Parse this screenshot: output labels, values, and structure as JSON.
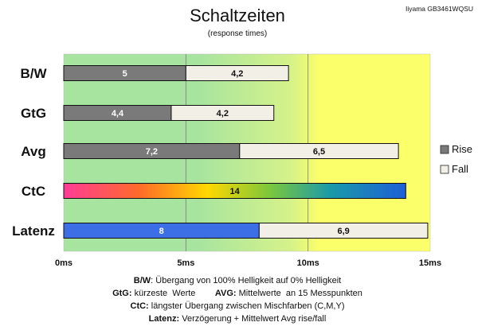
{
  "chart_data": {
    "type": "bar",
    "orientation": "horizontal",
    "stacked": true,
    "title": "Schaltzeiten",
    "subtitle": "(response times)",
    "corner_label": "Iiyama GB3461WQSU",
    "categories": [
      "B/W",
      "GtG",
      "Avg",
      "CtC",
      "Latenz"
    ],
    "series": [
      {
        "name": "Rise",
        "values": [
          5,
          4.4,
          7.2,
          14,
          8
        ],
        "labels": [
          "5",
          "4,4",
          "7,2",
          "14",
          "8"
        ]
      },
      {
        "name": "Fall",
        "values": [
          4.2,
          4.2,
          6.5,
          null,
          6.9
        ],
        "labels": [
          "4,2",
          "4,2",
          "6,5",
          "",
          "6,9"
        ]
      }
    ],
    "xlim": [
      0,
      15
    ],
    "xticks": [
      0,
      5,
      10,
      15
    ],
    "xtick_labels": [
      "0ms",
      "5ms",
      "10ms",
      "15ms"
    ],
    "grid": true,
    "legend_position": "right",
    "background_zones": "green to yellow gradient",
    "colors": {
      "rise": "#7a7a7a",
      "fall": "#f1efe6",
      "ctc_gradient": [
        "#ff3c96",
        "#ff6a2a",
        "#ffd800",
        "#7dc83a",
        "#1a9aa8",
        "#1d5fd6"
      ],
      "latenz_rise": "#3c6ee6",
      "bg_green": "#a6e4a0",
      "bg_yellow": "#fbff6a"
    },
    "footnotes": [
      {
        "bold": "B/W",
        "text": ":  Übergang von 100% Helligkeit auf 0% Helligkeit"
      },
      {
        "bold": "GtG:",
        "text": " kürzeste  Werte        ",
        "bold2": "AVG:",
        "text2": " Mittelwerte  an 15 Messpunkten"
      },
      {
        "bold": "CtC:",
        "text": " längster Übergang  zwischen Mischfarben (C,M,Y)"
      },
      {
        "bold": "Latenz:",
        "text": " Verzögerung  + Mittelwert  Avg rise/fall"
      }
    ]
  }
}
